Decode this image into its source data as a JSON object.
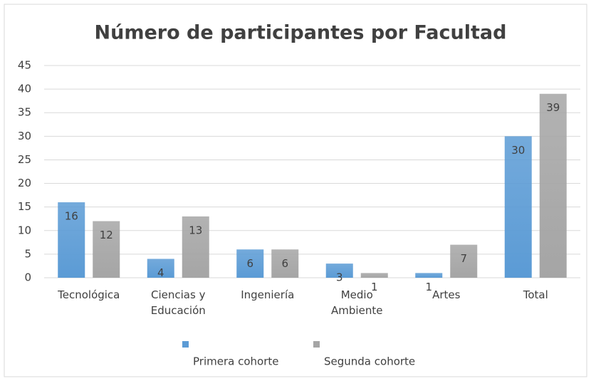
{
  "chart_data": {
    "type": "bar",
    "title": "Número de participantes  por Facultad",
    "categories": [
      "Tecnológica",
      "Ciencias y Educación",
      "Ingeniería",
      "Medio Ambiente",
      "Artes",
      "Total"
    ],
    "series": [
      {
        "name": "Primera cohorte",
        "color": "#5b9bd5",
        "values": [
          16,
          4,
          6,
          3,
          1,
          30
        ]
      },
      {
        "name": "Segunda cohorte",
        "color": "#a5a5a5",
        "values": [
          12,
          13,
          6,
          1,
          7,
          39
        ]
      }
    ],
    "ylim": [
      0,
      45
    ],
    "yticks": [
      0,
      5,
      10,
      15,
      20,
      25,
      30,
      35,
      40,
      45
    ],
    "grid": true,
    "legend": "bottom"
  }
}
